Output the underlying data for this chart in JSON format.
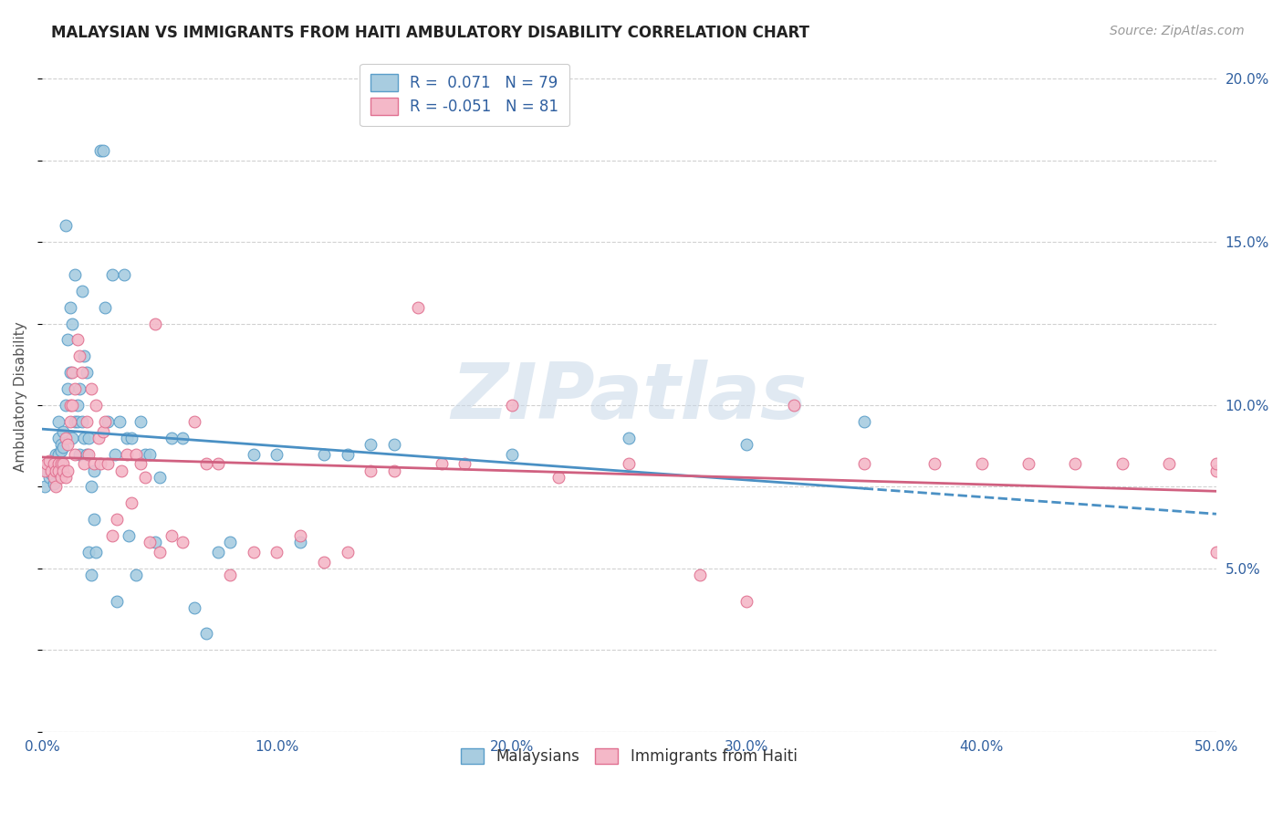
{
  "title": "MALAYSIAN VS IMMIGRANTS FROM HAITI AMBULATORY DISABILITY CORRELATION CHART",
  "source": "Source: ZipAtlas.com",
  "ylabel": "Ambulatory Disability",
  "xlim": [
    0.0,
    0.5
  ],
  "ylim": [
    0.0,
    0.205
  ],
  "xticks": [
    0.0,
    0.1,
    0.2,
    0.3,
    0.4,
    0.5
  ],
  "xticklabels": [
    "0.0%",
    "10.0%",
    "20.0%",
    "30.0%",
    "40.0%",
    "50.0%"
  ],
  "yticks_right": [
    0.0,
    0.05,
    0.1,
    0.15,
    0.2
  ],
  "yticklabels_right": [
    "",
    "5.0%",
    "10.0%",
    "15.0%",
    "20.0%"
  ],
  "legend_label1": "R =  0.071   N = 79",
  "legend_label2": "R = -0.051   N = 81",
  "color_blue": "#a8cce0",
  "color_blue_edge": "#5a9ec9",
  "color_blue_line": "#4a90c4",
  "color_pink": "#f4b8c8",
  "color_pink_edge": "#e07090",
  "color_pink_line": "#d06080",
  "color_label": "#3060a0",
  "background": "#ffffff",
  "grid_color": "#cccccc",
  "watermark": "ZIPatlas",
  "malaysians_x": [
    0.001,
    0.002,
    0.003,
    0.003,
    0.004,
    0.004,
    0.005,
    0.005,
    0.006,
    0.006,
    0.007,
    0.007,
    0.007,
    0.008,
    0.008,
    0.009,
    0.009,
    0.01,
    0.01,
    0.011,
    0.011,
    0.012,
    0.012,
    0.013,
    0.013,
    0.014,
    0.014,
    0.015,
    0.015,
    0.016,
    0.016,
    0.017,
    0.017,
    0.018,
    0.018,
    0.019,
    0.019,
    0.02,
    0.02,
    0.021,
    0.021,
    0.022,
    0.022,
    0.023,
    0.025,
    0.026,
    0.027,
    0.028,
    0.03,
    0.031,
    0.032,
    0.033,
    0.035,
    0.036,
    0.037,
    0.038,
    0.04,
    0.042,
    0.044,
    0.046,
    0.048,
    0.05,
    0.055,
    0.06,
    0.065,
    0.07,
    0.075,
    0.08,
    0.09,
    0.1,
    0.11,
    0.12,
    0.13,
    0.14,
    0.15,
    0.2,
    0.25,
    0.3,
    0.35
  ],
  "malaysians_y": [
    0.075,
    0.08,
    0.078,
    0.082,
    0.08,
    0.079,
    0.082,
    0.076,
    0.083,
    0.085,
    0.095,
    0.09,
    0.085,
    0.088,
    0.086,
    0.092,
    0.087,
    0.155,
    0.1,
    0.12,
    0.105,
    0.13,
    0.11,
    0.125,
    0.09,
    0.14,
    0.095,
    0.1,
    0.095,
    0.105,
    0.085,
    0.135,
    0.095,
    0.115,
    0.09,
    0.11,
    0.085,
    0.09,
    0.055,
    0.075,
    0.048,
    0.065,
    0.08,
    0.055,
    0.178,
    0.178,
    0.13,
    0.095,
    0.14,
    0.085,
    0.04,
    0.095,
    0.14,
    0.09,
    0.06,
    0.09,
    0.048,
    0.095,
    0.085,
    0.085,
    0.058,
    0.078,
    0.09,
    0.09,
    0.038,
    0.03,
    0.055,
    0.058,
    0.085,
    0.085,
    0.058,
    0.085,
    0.085,
    0.088,
    0.088,
    0.085,
    0.09,
    0.088,
    0.095
  ],
  "haiti_x": [
    0.001,
    0.002,
    0.003,
    0.004,
    0.005,
    0.005,
    0.006,
    0.006,
    0.007,
    0.007,
    0.008,
    0.008,
    0.009,
    0.009,
    0.01,
    0.01,
    0.011,
    0.011,
    0.012,
    0.012,
    0.013,
    0.013,
    0.014,
    0.014,
    0.015,
    0.016,
    0.017,
    0.018,
    0.019,
    0.02,
    0.021,
    0.022,
    0.023,
    0.024,
    0.025,
    0.026,
    0.027,
    0.028,
    0.03,
    0.032,
    0.034,
    0.036,
    0.038,
    0.04,
    0.042,
    0.044,
    0.046,
    0.048,
    0.05,
    0.055,
    0.06,
    0.065,
    0.07,
    0.075,
    0.08,
    0.09,
    0.1,
    0.11,
    0.12,
    0.13,
    0.14,
    0.15,
    0.16,
    0.17,
    0.18,
    0.2,
    0.22,
    0.25,
    0.28,
    0.3,
    0.32,
    0.35,
    0.38,
    0.4,
    0.42,
    0.44,
    0.46,
    0.48,
    0.5,
    0.5,
    0.5
  ],
  "haiti_y": [
    0.08,
    0.082,
    0.083,
    0.08,
    0.082,
    0.078,
    0.08,
    0.075,
    0.082,
    0.08,
    0.082,
    0.078,
    0.082,
    0.08,
    0.09,
    0.078,
    0.088,
    0.08,
    0.1,
    0.095,
    0.11,
    0.1,
    0.085,
    0.105,
    0.12,
    0.115,
    0.11,
    0.082,
    0.095,
    0.085,
    0.105,
    0.082,
    0.1,
    0.09,
    0.082,
    0.092,
    0.095,
    0.082,
    0.06,
    0.065,
    0.08,
    0.085,
    0.07,
    0.085,
    0.082,
    0.078,
    0.058,
    0.125,
    0.055,
    0.06,
    0.058,
    0.095,
    0.082,
    0.082,
    0.048,
    0.055,
    0.055,
    0.06,
    0.052,
    0.055,
    0.08,
    0.08,
    0.13,
    0.082,
    0.082,
    0.1,
    0.078,
    0.082,
    0.048,
    0.04,
    0.1,
    0.082,
    0.082,
    0.082,
    0.082,
    0.082,
    0.082,
    0.082,
    0.055,
    0.08,
    0.082
  ]
}
